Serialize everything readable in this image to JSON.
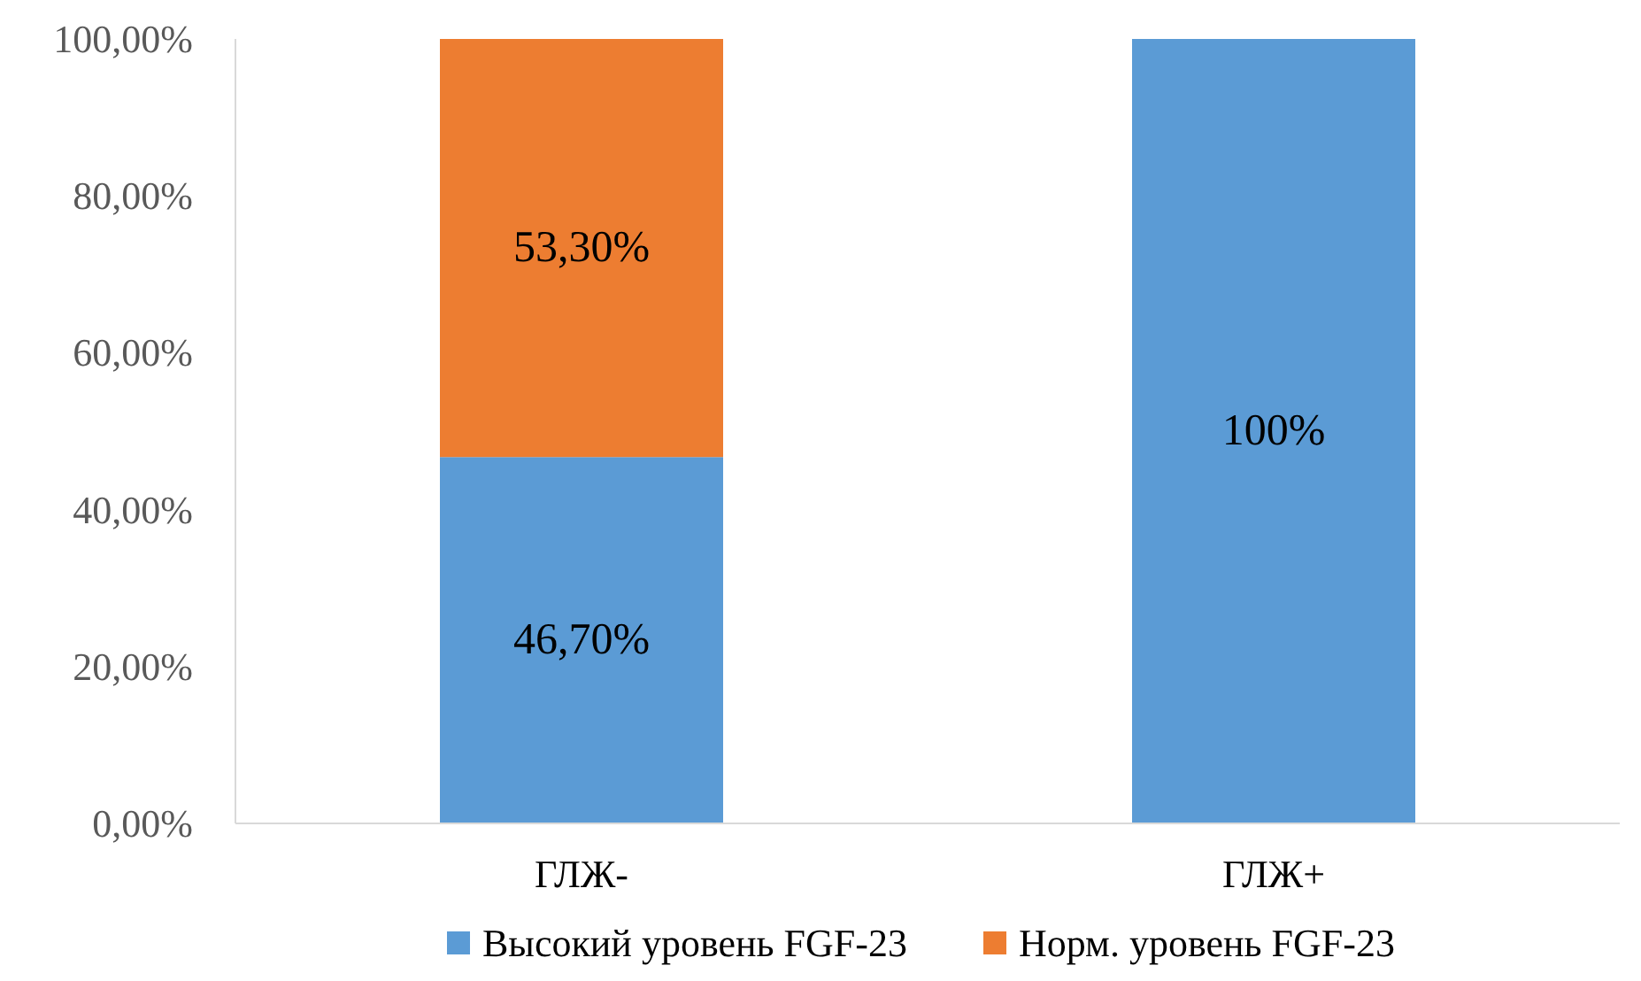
{
  "chart_data": {
    "type": "bar",
    "stacked": true,
    "categories": [
      "ГЛЖ-",
      "ГЛЖ+"
    ],
    "series": [
      {
        "name": "Высокий уровень FGF-23",
        "color": "#5b9bd5",
        "values": [
          46.7,
          100
        ],
        "value_labels": [
          "46,70%",
          "100%"
        ]
      },
      {
        "name": "Норм. уровень FGF-23",
        "color": "#ed7d31",
        "values": [
          53.3,
          0
        ],
        "value_labels": [
          "53,30%",
          null
        ]
      }
    ],
    "ylim": [
      0,
      100
    ],
    "yticks": [
      {
        "value": 0,
        "label": "0,00%"
      },
      {
        "value": 20,
        "label": "20,00%"
      },
      {
        "value": 40,
        "label": "40,00%"
      },
      {
        "value": 60,
        "label": "60,00%"
      },
      {
        "value": 80,
        "label": "80,00%"
      },
      {
        "value": 100,
        "label": "100,00%"
      }
    ],
    "grid": false,
    "legend": "bottom"
  }
}
